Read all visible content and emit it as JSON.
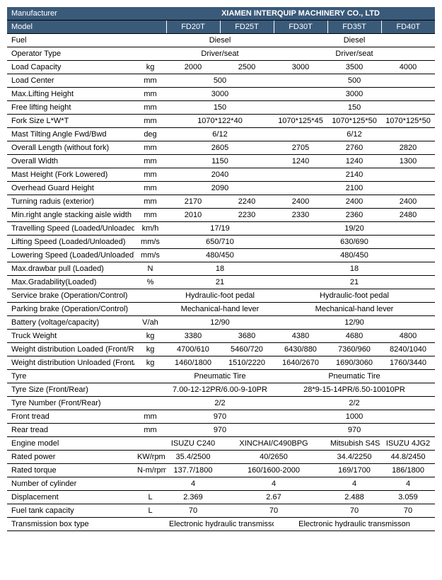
{
  "header": {
    "manufacturer_label": "Manufacturer",
    "manufacturer_value": "XIAMEN INTERQUIP MACHINERY CO., LTD",
    "model_label": "Model",
    "models": [
      "FD20T",
      "FD25T",
      "FD30T",
      "FD35T",
      "FD40T"
    ]
  },
  "rows": [
    {
      "label": "Fuel",
      "unit": "",
      "spans": [
        {
          "cols": 2,
          "val": "Diesel"
        },
        {
          "cols": 3,
          "val": "Diesel"
        }
      ]
    },
    {
      "label": "Operator Type",
      "unit": "",
      "spans": [
        {
          "cols": 2,
          "val": "Driver/seat"
        },
        {
          "cols": 3,
          "val": "Driver/seat"
        }
      ]
    },
    {
      "label": "Load Capacity",
      "unit": "kg",
      "cells": [
        "2000",
        "2500",
        "3000",
        "3500",
        "4000"
      ]
    },
    {
      "label": "Load Center",
      "unit": "mm",
      "spans": [
        {
          "cols": 2,
          "val": "500"
        },
        {
          "cols": 3,
          "val": "500"
        }
      ]
    },
    {
      "label": "Max.Lifting Height",
      "unit": "mm",
      "spans": [
        {
          "cols": 2,
          "val": "3000"
        },
        {
          "cols": 3,
          "val": "3000"
        }
      ]
    },
    {
      "label": "Free lifting height",
      "unit": "mm",
      "spans": [
        {
          "cols": 2,
          "val": "150"
        },
        {
          "cols": 3,
          "val": "150"
        }
      ]
    },
    {
      "label": "Fork Size  L*W*T",
      "unit": "mm",
      "cells_mixed": [
        {
          "cols": 2,
          "val": "1070*122*40"
        },
        {
          "cols": 1,
          "val": "1070*125*45"
        },
        {
          "cols": 1,
          "val": "1070*125*50"
        },
        {
          "cols": 1,
          "val": "1070*125*50"
        }
      ]
    },
    {
      "label": "Mast Tilting Angle  Fwd/Bwd",
      "unit": "deg",
      "spans": [
        {
          "cols": 2,
          "val": "6/12"
        },
        {
          "cols": 3,
          "val": "6/12"
        }
      ]
    },
    {
      "label": "Overall Length (without fork)",
      "unit": "mm",
      "cells_mixed": [
        {
          "cols": 2,
          "val": "2605"
        },
        {
          "cols": 1,
          "val": "2705"
        },
        {
          "cols": 1,
          "val": "2760"
        },
        {
          "cols": 1,
          "val": "2820"
        }
      ]
    },
    {
      "label": "Overall Width",
      "unit": "mm",
      "cells_mixed": [
        {
          "cols": 2,
          "val": "1150"
        },
        {
          "cols": 1,
          "val": "1240"
        },
        {
          "cols": 1,
          "val": "1240"
        },
        {
          "cols": 1,
          "val": "1300"
        }
      ]
    },
    {
      "label": "Mast Height (Fork Lowered)",
      "unit": "mm",
      "spans": [
        {
          "cols": 2,
          "val": "2040"
        },
        {
          "cols": 3,
          "val": "2140"
        }
      ]
    },
    {
      "label": "Overhead Guard Height",
      "unit": "mm",
      "spans": [
        {
          "cols": 2,
          "val": "2090"
        },
        {
          "cols": 3,
          "val": "2100"
        }
      ]
    },
    {
      "label": "Turning raduis (exterior)",
      "unit": "mm",
      "cells": [
        "2170",
        "2240",
        "2400",
        "2400",
        "2400"
      ]
    },
    {
      "label": "Min.right angle stacking aisle width",
      "unit": "mm",
      "cells": [
        "2010",
        "2230",
        "2330",
        "2360",
        "2480"
      ]
    },
    {
      "label": "Travelling Speed (Loaded/Unloaded)",
      "unit": "km/h",
      "spans": [
        {
          "cols": 2,
          "val": "17/19"
        },
        {
          "cols": 3,
          "val": "19/20"
        }
      ]
    },
    {
      "label": "Lifting Speed (Loaded/Unloaded)",
      "unit": "mm/s",
      "spans": [
        {
          "cols": 2,
          "val": "650/710"
        },
        {
          "cols": 3,
          "val": "630/690"
        }
      ]
    },
    {
      "label": "Lowering Speed (Loaded/Unloaded)",
      "unit": "mm/s",
      "spans": [
        {
          "cols": 2,
          "val": "480/450"
        },
        {
          "cols": 3,
          "val": "480/450"
        }
      ]
    },
    {
      "label": "Max.drawbar pull (Loaded)",
      "unit": "N",
      "spans": [
        {
          "cols": 2,
          "val": "18"
        },
        {
          "cols": 3,
          "val": "18"
        }
      ]
    },
    {
      "label": "Max.Gradability(Loaded)",
      "unit": "%",
      "spans": [
        {
          "cols": 2,
          "val": "21"
        },
        {
          "cols": 3,
          "val": "21"
        }
      ]
    },
    {
      "label": "Service brake (Operation/Control)",
      "unit": "",
      "spans": [
        {
          "cols": 2,
          "val": "Hydraulic-foot pedal"
        },
        {
          "cols": 3,
          "val": "Hydraulic-foot pedal"
        }
      ]
    },
    {
      "label": "Parking brake (Operation/Control)",
      "unit": "",
      "spans": [
        {
          "cols": 2,
          "val": "Mechanical-hand lever"
        },
        {
          "cols": 3,
          "val": "Mechanical-hand lever"
        }
      ]
    },
    {
      "label": "Battery (voltage/capacity)",
      "unit": "V/ah",
      "spans": [
        {
          "cols": 2,
          "val": "12/90"
        },
        {
          "cols": 3,
          "val": "12/90"
        }
      ]
    },
    {
      "label": "Truck Weight",
      "unit": "kg",
      "cells": [
        "3380",
        "3680",
        "4380",
        "4680",
        "4800"
      ]
    },
    {
      "label": "Weight distribution Loaded (Front/Rear)",
      "unit": "kg",
      "cells": [
        "4700/610",
        "5460/720",
        "6430/880",
        "7360/960",
        "8240/1040"
      ]
    },
    {
      "label": "Weight distribution Unloaded (Front/Rear)",
      "unit": "kg",
      "cells": [
        "1460/1800",
        "1510/2220",
        "1640/2670",
        "1690/3060",
        "1760/3440"
      ]
    },
    {
      "label": "Tyre",
      "unit": "",
      "spans": [
        {
          "cols": 2,
          "val": "Pneumatic Tire"
        },
        {
          "cols": 3,
          "val": "Pneumatic Tire"
        }
      ]
    },
    {
      "label": "Tyre Size  (Front/Rear)",
      "unit": "",
      "spans": [
        {
          "cols": 2,
          "val": "7.00-12-12PR/6.00-9-10PR"
        },
        {
          "cols": 3,
          "val": "28*9-15-14PR/6.50-10010PR"
        }
      ]
    },
    {
      "label": "Tyre Number  (Front/Rear)",
      "unit": "",
      "spans": [
        {
          "cols": 2,
          "val": "2/2"
        },
        {
          "cols": 3,
          "val": "2/2"
        }
      ]
    },
    {
      "label": "Front tread",
      "unit": "mm",
      "spans": [
        {
          "cols": 2,
          "val": "970"
        },
        {
          "cols": 3,
          "val": "1000"
        }
      ]
    },
    {
      "label": "Rear tread",
      "unit": "mm",
      "spans": [
        {
          "cols": 2,
          "val": "970"
        },
        {
          "cols": 3,
          "val": "970"
        }
      ]
    },
    {
      "label": "Engine model",
      "unit": "",
      "cells_mixed": [
        {
          "cols": 1,
          "val": "ISUZU C240"
        },
        {
          "cols": 2,
          "val": "XINCHAI/C490BPG"
        },
        {
          "cols": 1,
          "val": "Mitsubish S4S"
        },
        {
          "cols": 1,
          "val": "ISUZU 4JG2"
        }
      ]
    },
    {
      "label": "Rated power",
      "unit": "KW/rpm",
      "cells_mixed": [
        {
          "cols": 1,
          "val": "35.4/2500"
        },
        {
          "cols": 2,
          "val": "40/2650"
        },
        {
          "cols": 1,
          "val": "34.4/2250"
        },
        {
          "cols": 1,
          "val": "44.8/2450"
        }
      ]
    },
    {
      "label": "Rated torque",
      "unit": "N-m/rpm",
      "cells_mixed": [
        {
          "cols": 1,
          "val": "137.7/1800"
        },
        {
          "cols": 2,
          "val": "160/1600-2000"
        },
        {
          "cols": 1,
          "val": "169/1700"
        },
        {
          "cols": 1,
          "val": "186/1800"
        }
      ]
    },
    {
      "label": "Number of cylinder",
      "unit": "",
      "cells_mixed": [
        {
          "cols": 1,
          "val": "4"
        },
        {
          "cols": 2,
          "val": "4"
        },
        {
          "cols": 1,
          "val": "4"
        },
        {
          "cols": 1,
          "val": "4"
        }
      ]
    },
    {
      "label": "Displacement",
      "unit": "L",
      "cells_mixed": [
        {
          "cols": 1,
          "val": "2.369"
        },
        {
          "cols": 2,
          "val": "2.67"
        },
        {
          "cols": 1,
          "val": "2.488"
        },
        {
          "cols": 1,
          "val": "3.059"
        }
      ]
    },
    {
      "label": "Fuel tank capacity",
      "unit": "L",
      "cells_mixed": [
        {
          "cols": 1,
          "val": "70"
        },
        {
          "cols": 2,
          "val": "70"
        },
        {
          "cols": 1,
          "val": "70"
        },
        {
          "cols": 1,
          "val": "70"
        }
      ]
    },
    {
      "label": "Transmission box type",
      "unit": "",
      "spans": [
        {
          "cols": 2,
          "val": "Electronic hydraulic transmisson"
        },
        {
          "cols": 3,
          "val": "Electronic hydraulic transmisson"
        }
      ]
    }
  ]
}
